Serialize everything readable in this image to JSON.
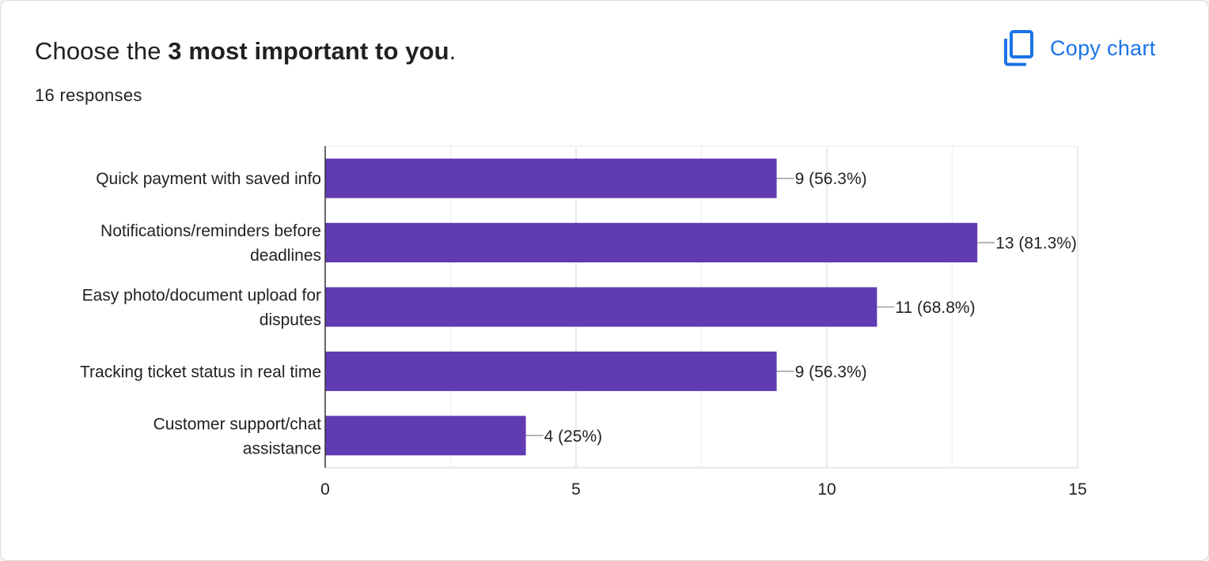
{
  "header": {
    "title_prefix": "Choose the ",
    "title_bold": "3 most important to you",
    "title_suffix": ".",
    "responses": "16 responses"
  },
  "toolbar": {
    "copy_label": "Copy chart",
    "copy_icon": "copy-icon"
  },
  "colors": {
    "bar": "#613bb1",
    "accent": "#1a73e8"
  },
  "chart_data": {
    "type": "bar",
    "orientation": "horizontal",
    "title": "Choose the 3 most important to you.",
    "categories": [
      [
        "Quick payment with saved info"
      ],
      [
        "Notifications/reminders before",
        "deadlines"
      ],
      [
        "Easy photo/document upload for",
        "disputes"
      ],
      [
        "Tracking ticket status in real time"
      ],
      [
        "Customer support/chat",
        "assistance"
      ]
    ],
    "values": [
      9,
      13,
      11,
      9,
      4
    ],
    "data_labels": [
      "9 (56.3%)",
      "13 (81.3%)",
      "11 (68.8%)",
      "9 (56.3%)",
      "4 (25%)"
    ],
    "xlim": [
      0,
      15
    ],
    "xticks": [
      0,
      5,
      10,
      15
    ],
    "grid": true,
    "xlabel": "",
    "ylabel": ""
  }
}
